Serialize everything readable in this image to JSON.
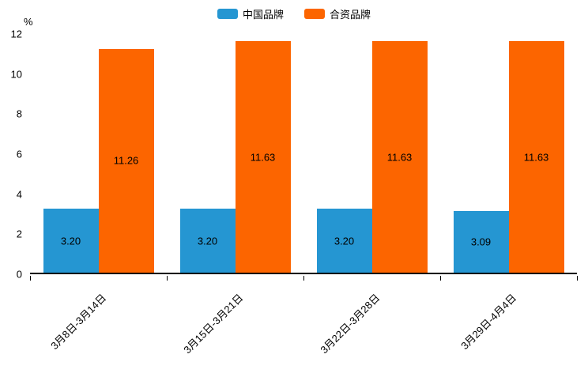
{
  "chart_data": {
    "type": "bar",
    "title": "",
    "unit_label": "%",
    "categories": [
      "3月8日-3月14日",
      "3月15日-3月21日",
      "3月22日-3月28日",
      "3月29日-4月4日"
    ],
    "series": [
      {
        "name": "中国品牌",
        "color": "#2596d2",
        "values": [
          3.2,
          3.2,
          3.2,
          3.09
        ],
        "labels": [
          "3.20",
          "3.20",
          "3.20",
          "3.09"
        ]
      },
      {
        "name": "合资品牌",
        "color": "#fc6500",
        "values": [
          11.26,
          11.63,
          11.63,
          11.63
        ],
        "labels": [
          "11.26",
          "11.63",
          "11.63",
          "11.63"
        ]
      }
    ],
    "ylim": [
      0,
      12
    ],
    "yticks": [
      0,
      2,
      4,
      6,
      8,
      10,
      12
    ],
    "legend_position": "top",
    "grid": false
  }
}
